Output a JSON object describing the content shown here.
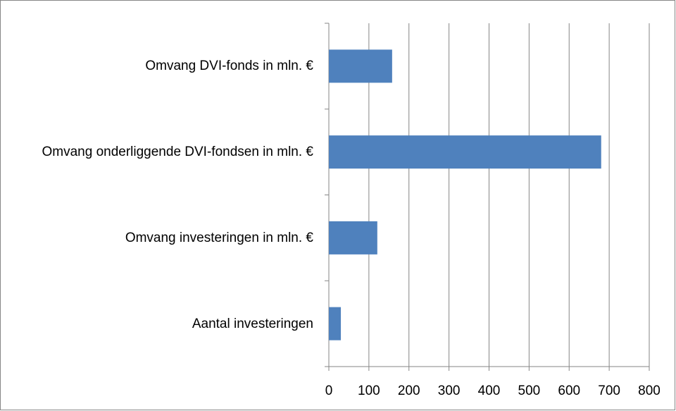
{
  "chart_data": {
    "type": "bar",
    "orientation": "horizontal",
    "categories": [
      "Omvang DVI-fonds in mln. €",
      "Omvang onderliggende DVI-fondsen in mln. €",
      "Omvang investeringen in mln. €",
      "Aantal investeringen"
    ],
    "values": [
      158,
      680,
      121,
      30
    ],
    "color": "#4f81bd",
    "xlim": [
      0,
      800
    ],
    "xticks": [
      0,
      100,
      200,
      300,
      400,
      500,
      600,
      700,
      800
    ],
    "grid": true
  }
}
